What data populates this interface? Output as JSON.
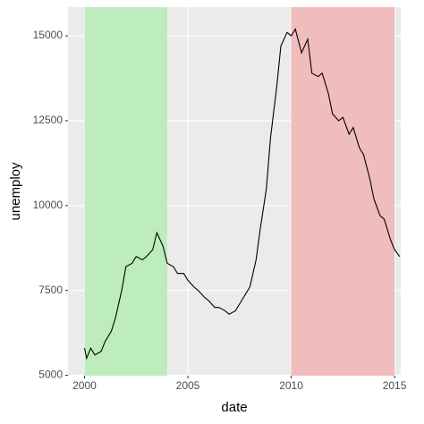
{
  "chart_data": {
    "type": "line",
    "x_label": "date",
    "y_label": "unemploy",
    "xlim": [
      1999.2,
      2015.3
    ],
    "xticks": [
      2000,
      2005,
      2010,
      2015
    ],
    "ylim": [
      4988,
      15845
    ],
    "yticks": [
      5000,
      7500,
      10000,
      12500,
      15000
    ],
    "grid": true,
    "panel_color": "#ebebeb",
    "regions": [
      {
        "xmin": 2000,
        "xmax": 2004,
        "color": "#bdedbd"
      },
      {
        "xmin": 2010,
        "xmax": 2015,
        "color": "#f0bcbc"
      }
    ],
    "series": [
      {
        "color": "#000000",
        "x": [
          2000.0,
          2000.1,
          2000.3,
          2000.5,
          2000.8,
          2001.0,
          2001.3,
          2001.5,
          2001.8,
          2002.0,
          2002.3,
          2002.5,
          2002.8,
          2003.0,
          2003.3,
          2003.5,
          2003.8,
          2004.0,
          2004.3,
          2004.5,
          2004.8,
          2005.0,
          2005.3,
          2005.5,
          2005.8,
          2006.0,
          2006.3,
          2006.5,
          2006.8,
          2007.0,
          2007.3,
          2007.5,
          2007.8,
          2008.0,
          2008.3,
          2008.5,
          2008.8,
          2009.0,
          2009.3,
          2009.5,
          2009.8,
          2010.0,
          2010.2,
          2010.5,
          2010.8,
          2011.0,
          2011.3,
          2011.5,
          2011.8,
          2012.0,
          2012.3,
          2012.5,
          2012.8,
          2013.0,
          2013.3,
          2013.5,
          2013.8,
          2014.0,
          2014.3,
          2014.5,
          2014.8,
          2015.0,
          2015.25
        ],
        "values": [
          5800,
          5500,
          5800,
          5600,
          5700,
          6000,
          6300,
          6700,
          7500,
          8200,
          8300,
          8500,
          8400,
          8500,
          8700,
          9200,
          8800,
          8300,
          8200,
          8000,
          8000,
          7800,
          7600,
          7500,
          7300,
          7200,
          7000,
          7000,
          6900,
          6800,
          6900,
          7100,
          7400,
          7600,
          8400,
          9300,
          10500,
          12000,
          13500,
          14700,
          15100,
          15000,
          15200,
          14500,
          14900,
          13900,
          13800,
          13900,
          13300,
          12700,
          12500,
          12600,
          12100,
          12300,
          11700,
          11500,
          10800,
          10200,
          9700,
          9600,
          9000,
          8700,
          8500
        ]
      }
    ]
  }
}
